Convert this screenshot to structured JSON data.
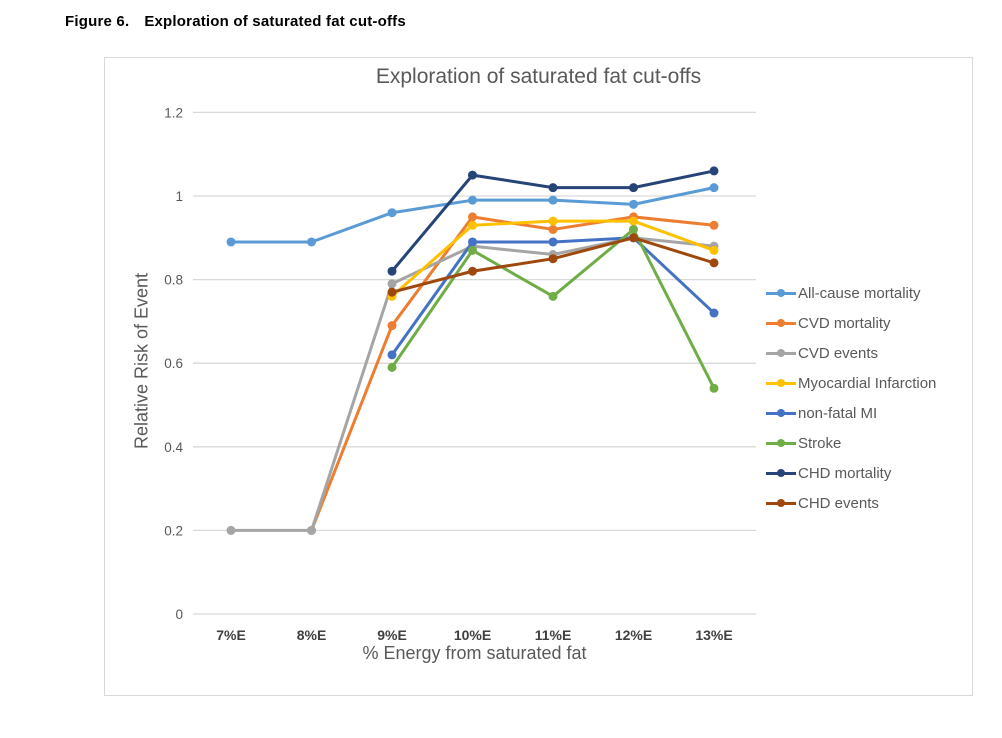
{
  "page": {
    "figure_label": "Figure 6.",
    "figure_title": "Exploration of saturated fat cut-offs"
  },
  "chart_data": {
    "type": "line",
    "title": "Exploration of saturated fat cut-offs",
    "xlabel": "% Energy from saturated fat",
    "ylabel": "Relative Risk of Event",
    "categories": [
      "7%E",
      "8%E",
      "9%E",
      "10%E",
      "11%E",
      "12%E",
      "13%E"
    ],
    "y_ticks": [
      0,
      0.2,
      0.4,
      0.6,
      0.8,
      1,
      1.2
    ],
    "y_tick_labels": [
      "0",
      "0.2",
      "0.4",
      "0.6",
      "0.8",
      "1",
      "1.2"
    ],
    "ylim": [
      0,
      1.2
    ],
    "grid": true,
    "legend_position": "right",
    "colors": {
      "gridline": "#d9d9d9",
      "title_text": "#595959",
      "axis_text": "#595959",
      "x_tick_text": "#404040"
    },
    "series": [
      {
        "name": "All-cause mortality",
        "color": "#5B9BD5",
        "values": [
          0.89,
          0.89,
          0.96,
          0.99,
          0.99,
          0.98,
          1.02
        ]
      },
      {
        "name": "CVD mortality",
        "color": "#ED7D31",
        "values": [
          null,
          0.2,
          0.69,
          0.95,
          0.92,
          0.95,
          0.93
        ]
      },
      {
        "name": "CVD events",
        "color": "#A5A5A5",
        "values": [
          0.2,
          0.2,
          0.79,
          0.88,
          0.86,
          0.9,
          0.88
        ]
      },
      {
        "name": "Myocardial Infarction",
        "color": "#FFC000",
        "values": [
          null,
          null,
          0.76,
          0.93,
          0.94,
          0.94,
          0.87
        ]
      },
      {
        "name": "non-fatal MI",
        "color": "#4472C4",
        "values": [
          null,
          null,
          0.62,
          0.89,
          0.89,
          0.9,
          0.72
        ]
      },
      {
        "name": "Stroke",
        "color": "#70AD47",
        "values": [
          null,
          null,
          0.59,
          0.87,
          0.76,
          0.92,
          0.54
        ]
      },
      {
        "name": "CHD mortality",
        "color": "#264478",
        "values": [
          null,
          null,
          0.82,
          1.05,
          1.02,
          1.02,
          1.06
        ]
      },
      {
        "name": "CHD events",
        "color": "#9E480E",
        "values": [
          null,
          null,
          0.77,
          0.82,
          0.85,
          0.9,
          0.84
        ]
      }
    ]
  }
}
